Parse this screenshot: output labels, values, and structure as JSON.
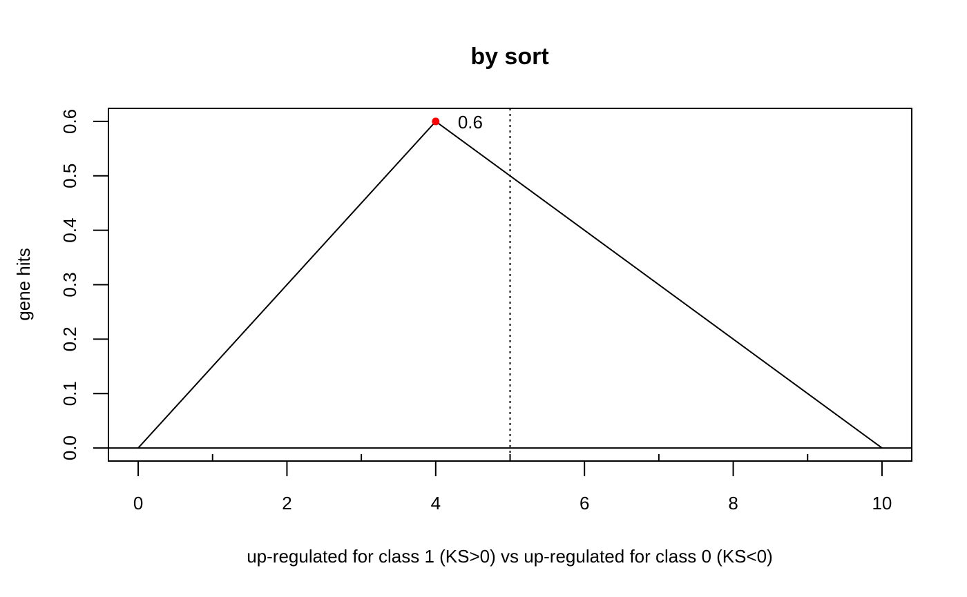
{
  "chart_data": {
    "type": "line",
    "title": "by sort",
    "xlabel": "up-regulated for class 1 (KS>0) vs up-regulated for class 0 (KS<0)",
    "ylabel": "gene hits",
    "xlim": [
      -0.4,
      10.4
    ],
    "ylim": [
      -0.024,
      0.624
    ],
    "x_ticks_major": [
      0,
      2,
      4,
      6,
      8,
      10
    ],
    "x_ticks_minor": [
      1,
      3,
      5,
      7,
      9
    ],
    "y_ticks": [
      0.0,
      0.1,
      0.2,
      0.3,
      0.4,
      0.5,
      0.6
    ],
    "series": [
      {
        "x": [
          0,
          4,
          10
        ],
        "y": [
          0.0,
          0.6,
          0.0
        ]
      }
    ],
    "peak": {
      "x": 4,
      "y": 0.6,
      "label": "0.6",
      "color": "#ff0000"
    },
    "reference_hline": {
      "y": 0.0
    },
    "reference_vline": {
      "x": 5,
      "style": "dotted"
    },
    "grid": false,
    "line_color": "#000000"
  }
}
